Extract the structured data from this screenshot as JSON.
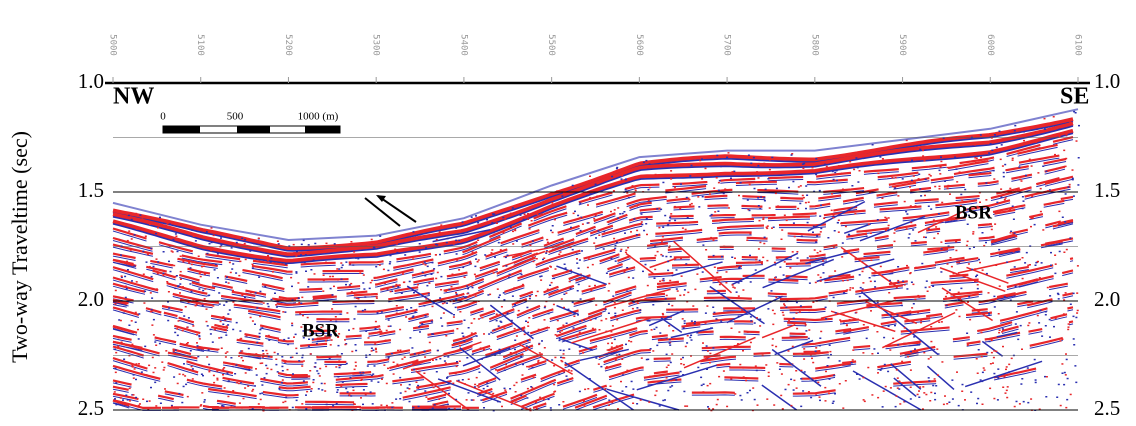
{
  "chart_data": {
    "type": "seismic",
    "y_label": "Two-way Traveltime (sec)",
    "x": [
      5000,
      5100,
      5200,
      5300,
      5400,
      5500,
      5600,
      5700,
      5800,
      5900,
      6000,
      6100
    ],
    "values": [
      1.55,
      1.65,
      1.72,
      1.7,
      1.62,
      1.47,
      1.34,
      1.31,
      1.31,
      1.26,
      1.21,
      1.12
    ],
    "xlim": [
      5000,
      6100
    ],
    "xticks": [
      5000,
      5100,
      5200,
      5300,
      5400,
      5500,
      5600,
      5700,
      5800,
      5900,
      6000,
      6100
    ],
    "ylim": [
      1.0,
      2.5
    ],
    "y_inverted": true,
    "yticks": [
      {
        "value": 1.0,
        "label": "1.0"
      },
      1.5,
      {
        "value": 2.0,
        "label": "2.0"
      },
      2.5
    ],
    "minor_yticks": [
      1.25,
      1.75,
      2.25
    ],
    "annotations": {
      "left": "NW",
      "right": "SE",
      "bsr_right": "BSR",
      "bsr_left": "BSR"
    },
    "scale_bar": {
      "labels": [
        "0",
        "500",
        "1000 (m)"
      ]
    },
    "colors": {
      "positive": "#e8262a",
      "negative": "#2a2fb0"
    }
  }
}
